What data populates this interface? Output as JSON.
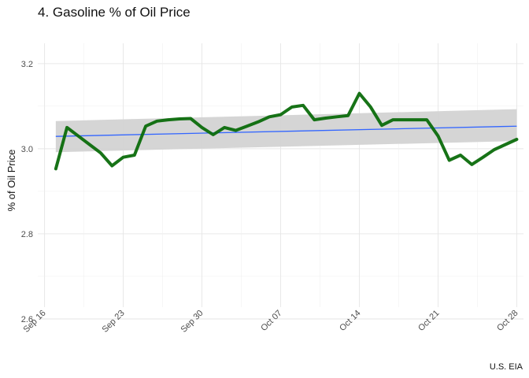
{
  "chart_data": {
    "type": "line",
    "title": "4. Gasoline % of Oil Price",
    "xlabel": "",
    "ylabel": "% of Oil Price",
    "caption": "U.S. EIA",
    "ylim": [
      2.6,
      3.22
    ],
    "xlim": [
      "2019-09-16",
      "2019-10-28"
    ],
    "y_ticks": [
      2.6,
      2.8,
      3.0,
      3.2
    ],
    "y_tick_labels": [
      "2.6",
      "2.8",
      "3.0",
      "3.2"
    ],
    "x_ticks": [
      "2019-09-16",
      "2019-09-23",
      "2019-09-30",
      "2019-10-07",
      "2019-10-14",
      "2019-10-21",
      "2019-10-28"
    ],
    "x_tick_labels": [
      "Sep 16",
      "Sep 23",
      "Sep 30",
      "Oct 07",
      "Oct 14",
      "Oct 21",
      "Oct 28"
    ],
    "grid": true,
    "series": [
      {
        "color": "#0b6b0b",
        "x": [
          "2019-09-17",
          "2019-09-18",
          "2019-09-19",
          "2019-09-20",
          "2019-09-21",
          "2019-09-22",
          "2019-09-23",
          "2019-09-24",
          "2019-09-25",
          "2019-09-26",
          "2019-09-27",
          "2019-09-28",
          "2019-09-29",
          "2019-09-30",
          "2019-10-01",
          "2019-10-02",
          "2019-10-03",
          "2019-10-04",
          "2019-10-05",
          "2019-10-06",
          "2019-10-07",
          "2019-10-08",
          "2019-10-09",
          "2019-10-10",
          "2019-10-11",
          "2019-10-12",
          "2019-10-13",
          "2019-10-14",
          "2019-10-15",
          "2019-10-16",
          "2019-10-17",
          "2019-10-18",
          "2019-10-19",
          "2019-10-20",
          "2019-10-21",
          "2019-10-22",
          "2019-10-23",
          "2019-10-24",
          "2019-10-25",
          "2019-10-26",
          "2019-10-27",
          "2019-10-28"
        ],
        "values": [
          2.953,
          3.05,
          3.03,
          3.01,
          2.99,
          2.96,
          2.98,
          2.985,
          3.053,
          3.065,
          3.068,
          3.07,
          3.071,
          3.05,
          3.033,
          3.05,
          3.043,
          3.053,
          3.063,
          3.075,
          3.08,
          3.098,
          3.102,
          3.068,
          3.072,
          3.075,
          3.078,
          3.13,
          3.098,
          3.055,
          3.068,
          3.068,
          3.068,
          3.068,
          3.03,
          2.973,
          2.985,
          2.963,
          2.98,
          2.998,
          3.01,
          3.022
        ]
      }
    ],
    "trend": {
      "color": "#3366ff",
      "band_color": "#d3d3d3",
      "x": [
        "2019-09-17",
        "2019-10-28"
      ],
      "values": [
        3.029,
        3.053
      ],
      "upper": [
        3.065,
        3.093
      ],
      "lower": [
        2.992,
        3.018
      ]
    }
  }
}
